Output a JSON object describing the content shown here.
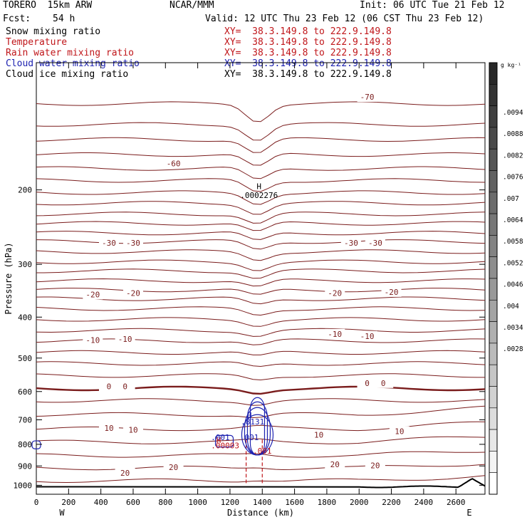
{
  "header": {
    "model": "TORERO  15km ARW",
    "center": "NCAR/MMM",
    "init": "Init: 06 UTC Tue 21 Feb 12",
    "fcst_label": "Fcst:",
    "fcst_value": "54 h",
    "valid": "Valid: 12 UTC Thu 23 Feb 12 (06 CST Thu 23 Feb 12)"
  },
  "fields": [
    {
      "name": "Snow mixing ratio",
      "xy": "XY=  38.3.149.8 to 222.9.149.8",
      "color": "#000000"
    },
    {
      "name": "Temperature",
      "xy": "XY=  38.3.149.8 to 222.9.149.8",
      "color": "#c0161a"
    },
    {
      "name": "Rain water mixing ratio",
      "xy": "XY=  38.3.149.8 to 222.9.149.8",
      "color": "#c0161a"
    },
    {
      "name": "Cloud water mixing ratio",
      "xy": "XY=  38.3.149.8 to 222.9.149.8",
      "color": "#1d22b0"
    },
    {
      "name": "Cloud ice mixing ratio",
      "xy": "XY=  38.3.149.8 to 222.9.149.8",
      "color": "#000000"
    }
  ],
  "chart_data": {
    "type": "contour cross-section",
    "xlabel": "Distance (km)",
    "ylabel": "Pressure (hPa)",
    "xlim": [
      0,
      2780
    ],
    "ylim": [
      1050,
      100
    ],
    "y_log_scale": true,
    "x_ticks": [
      0,
      200,
      400,
      600,
      800,
      1000,
      1200,
      1400,
      1600,
      1800,
      2000,
      2200,
      2400,
      2600
    ],
    "y_ticks": [
      200,
      300,
      400,
      500,
      600,
      700,
      800,
      900,
      1000
    ],
    "x_end_labels": {
      "left": "W",
      "right": "E"
    },
    "colorbar": {
      "unit": "g kg⁻¹",
      "ticks": [
        ".0094",
        ".0088",
        ".0082",
        ".0076",
        ".007",
        ".0064",
        ".0058",
        ".0052",
        ".0046",
        ".004",
        ".0034",
        ".0028"
      ]
    },
    "temperature_contours": [
      {
        "label": "-70",
        "profile": [
          [
            0,
            122
          ],
          [
            1300,
            124
          ],
          [
            1400,
            126
          ],
          [
            2780,
            122
          ]
        ]
      },
      {
        "label": "-60",
        "profile": [
          [
            0,
            135
          ],
          [
            1300,
            138
          ],
          [
            1400,
            140
          ],
          [
            2780,
            135
          ]
        ]
      },
      {
        "label": "-30",
        "profile": [
          [
            0,
            296
          ],
          [
            1300,
            298
          ],
          [
            1400,
            300
          ],
          [
            2780,
            296
          ]
        ]
      },
      {
        "label": "-20",
        "profile": [
          [
            0,
            375
          ],
          [
            1300,
            378
          ],
          [
            1400,
            380
          ],
          [
            2780,
            375
          ]
        ]
      },
      {
        "label": "-10",
        "profile": [
          [
            0,
            462
          ],
          [
            1300,
            466
          ],
          [
            1400,
            468
          ],
          [
            2780,
            462
          ]
        ]
      },
      {
        "label": "0",
        "profile": [
          [
            0,
            580
          ],
          [
            800,
            585
          ],
          [
            1300,
            582
          ],
          [
            2000,
            578
          ],
          [
            2780,
            568
          ]
        ]
      },
      {
        "label": "10",
        "profile": [
          [
            0,
            722
          ],
          [
            800,
            725
          ],
          [
            1200,
            740
          ],
          [
            1400,
            735
          ],
          [
            1800,
            745
          ],
          [
            2200,
            705
          ],
          [
            2780,
            675
          ]
        ]
      },
      {
        "label": "20",
        "profile": [
          [
            0,
            930
          ],
          [
            800,
            925
          ],
          [
            1300,
            905
          ],
          [
            1800,
            900
          ],
          [
            2200,
            895
          ],
          [
            2780,
            885
          ]
        ]
      }
    ],
    "temperature_labels": [
      {
        "text": "-70",
        "x": 2050,
        "p": 121
      },
      {
        "text": "-60",
        "x": 850,
        "p": 174
      },
      {
        "text": "-30",
        "x": 450,
        "p": 268
      },
      {
        "text": "-30",
        "x": 600,
        "p": 268
      },
      {
        "text": "-30",
        "x": 1950,
        "p": 268
      },
      {
        "text": "-30",
        "x": 2100,
        "p": 268
      },
      {
        "text": "-20",
        "x": 350,
        "p": 355
      },
      {
        "text": "-20",
        "x": 600,
        "p": 352
      },
      {
        "text": "-20",
        "x": 1850,
        "p": 352
      },
      {
        "text": "-20",
        "x": 2200,
        "p": 350
      },
      {
        "text": "-10",
        "x": 350,
        "p": 455
      },
      {
        "text": "-10",
        "x": 550,
        "p": 452
      },
      {
        "text": "-10",
        "x": 1850,
        "p": 440
      },
      {
        "text": "-10",
        "x": 2050,
        "p": 445
      },
      {
        "text": "0",
        "x": 450,
        "p": 585
      },
      {
        "text": "0",
        "x": 550,
        "p": 585
      },
      {
        "text": "0",
        "x": 2050,
        "p": 575
      },
      {
        "text": "0",
        "x": 2150,
        "p": 575
      },
      {
        "text": "10",
        "x": 450,
        "p": 735
      },
      {
        "text": "10",
        "x": 600,
        "p": 742
      },
      {
        "text": "10",
        "x": 1750,
        "p": 762
      },
      {
        "text": "10",
        "x": 2250,
        "p": 748
      },
      {
        "text": "20",
        "x": 550,
        "p": 938
      },
      {
        "text": "20",
        "x": 850,
        "p": 910
      },
      {
        "text": "20",
        "x": 1850,
        "p": 895
      },
      {
        "text": "20",
        "x": 2100,
        "p": 900
      }
    ],
    "annotations": [
      {
        "text": "H",
        "x": 1380,
        "p": 199,
        "color": "#000000"
      },
      {
        "text": ".0002276",
        "x": 1380,
        "p": 209,
        "color": "#000000"
      },
      {
        "text": "H",
        "x": 1320,
        "p": 693,
        "color": "#1d22b0"
      },
      {
        "text": ".8131",
        "x": 1340,
        "p": 718,
        "color": "#1d22b0"
      },
      {
        "text": ".001",
        "x": 1140,
        "p": 782,
        "color": "#1d22b0"
      },
      {
        "text": ".001",
        "x": 1320,
        "p": 782,
        "color": "#1d22b0"
      },
      {
        "text": "H",
        "x": 1130,
        "p": 794,
        "color": "#c0161a"
      },
      {
        "text": ".00003",
        "x": 1170,
        "p": 818,
        "color": "#c0161a"
      },
      {
        "text": ".001",
        "x": 1400,
        "p": 842,
        "color": "#c0161a"
      }
    ],
    "cloud_water_center": {
      "x": 1370,
      "p_top": 620,
      "p_bottom": 848
    },
    "rain_shaft": {
      "x_left": 1300,
      "x_right": 1400,
      "p_top": 780,
      "p_bottom": 1000
    }
  }
}
